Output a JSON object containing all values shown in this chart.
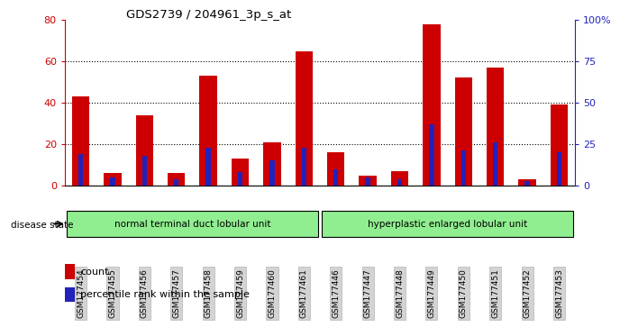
{
  "title": "GDS2739 / 204961_3p_s_at",
  "samples": [
    "GSM177454",
    "GSM177455",
    "GSM177456",
    "GSM177457",
    "GSM177458",
    "GSM177459",
    "GSM177460",
    "GSM177461",
    "GSM177446",
    "GSM177447",
    "GSM177448",
    "GSM177449",
    "GSM177450",
    "GSM177451",
    "GSM177452",
    "GSM177453"
  ],
  "counts": [
    43,
    6,
    34,
    6,
    53,
    13,
    21,
    65,
    16,
    5,
    7,
    78,
    52,
    57,
    3,
    39
  ],
  "percentiles": [
    19,
    5,
    18,
    4,
    23,
    8,
    15,
    23,
    10,
    5,
    4,
    37,
    21,
    26,
    3,
    20
  ],
  "group1_label": "normal terminal duct lobular unit",
  "group1_count": 8,
  "group2_label": "hyperplastic enlarged lobular unit",
  "group2_count": 8,
  "disease_state_label": "disease state",
  "legend_count": "count",
  "legend_percentile": "percentile rank within the sample",
  "left_ylim": [
    0,
    80
  ],
  "right_ylim": [
    0,
    100
  ],
  "left_yticks": [
    0,
    20,
    40,
    60,
    80
  ],
  "right_yticks": [
    0,
    25,
    50,
    75,
    100
  ],
  "right_yticklabels": [
    "0",
    "25",
    "50",
    "75",
    "100%"
  ],
  "bar_color_count": "#cc0000",
  "bar_color_percentile": "#2222bb",
  "group_color": "#90ee90",
  "bg_color": "#ffffff",
  "tick_bg_color": "#d3d3d3",
  "gridline_ticks": [
    20,
    40,
    60
  ]
}
